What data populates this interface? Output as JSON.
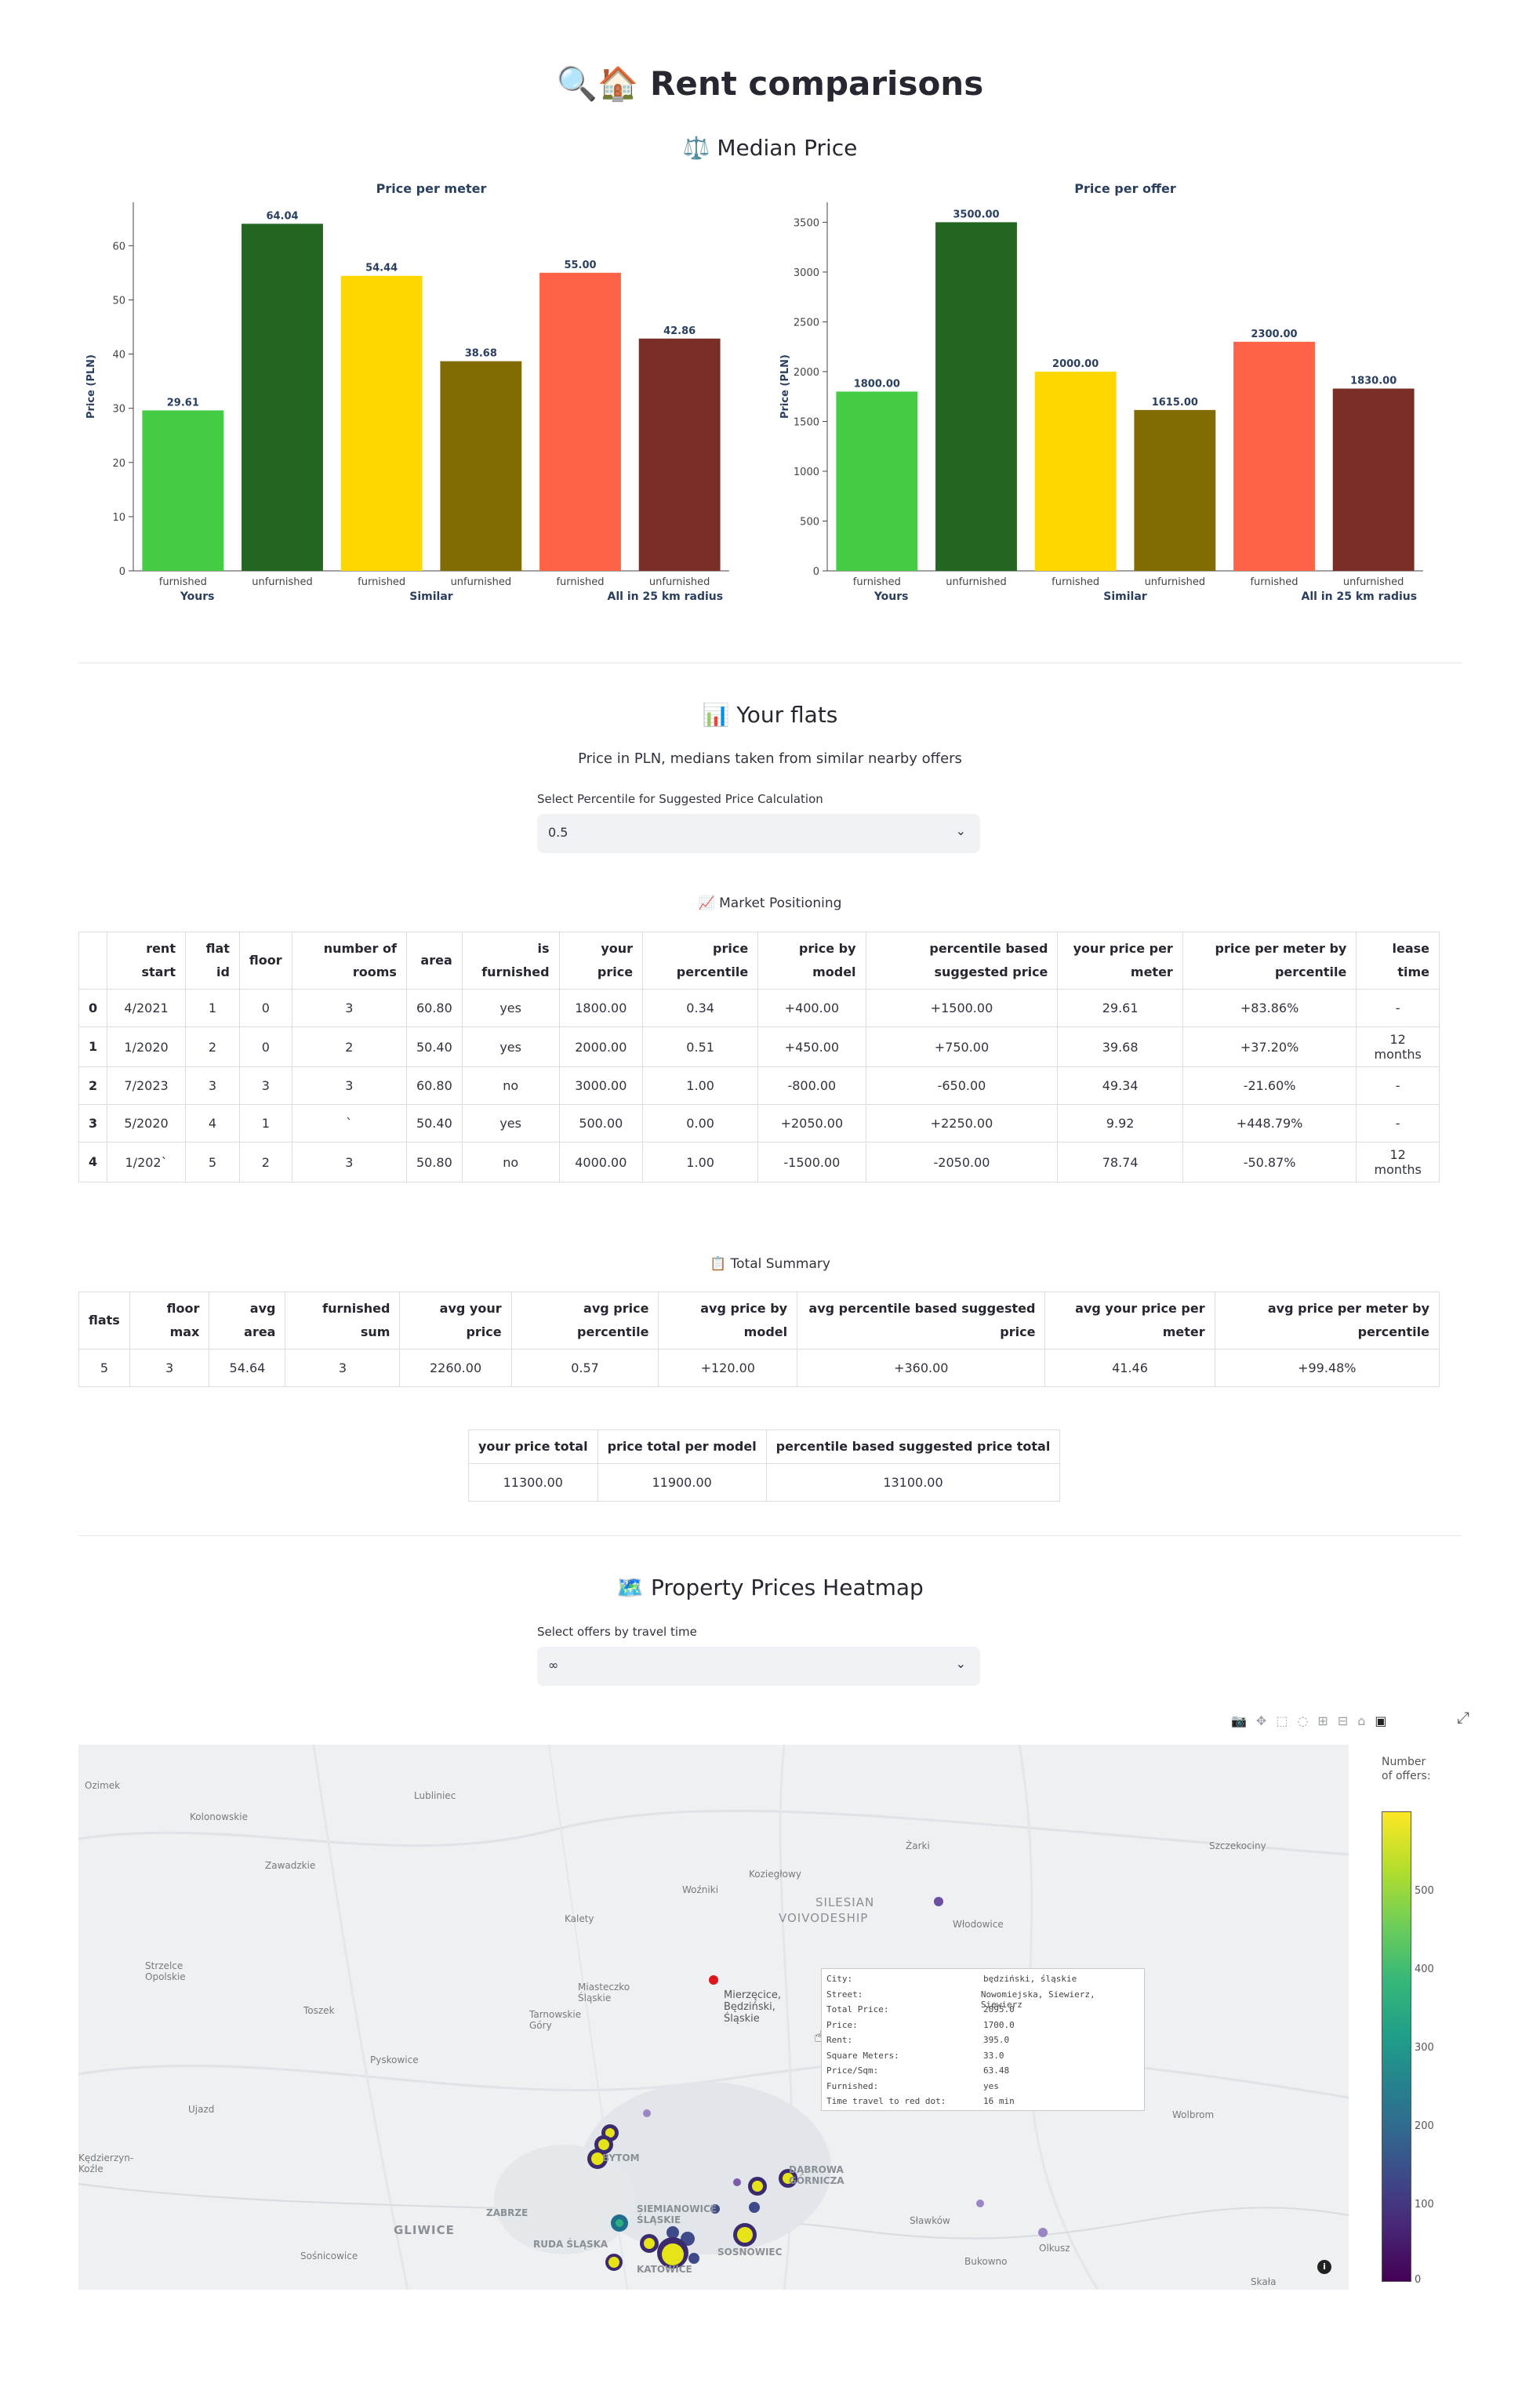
{
  "header": {
    "title_icons": "🔍🏠",
    "title": "Rent comparisons",
    "median_icon": "⚖️",
    "median_title": "Median Price"
  },
  "chart_data": [
    {
      "type": "bar",
      "title": "Price per meter",
      "ylabel": "Price (PLN)",
      "ylim": [
        0,
        68
      ],
      "yticks": [
        0,
        10,
        20,
        30,
        40,
        50,
        60
      ],
      "groups": [
        "Yours",
        "Similar",
        "All in 25 km radius"
      ],
      "categories": [
        "furnished",
        "unfurnished",
        "furnished",
        "unfurnished",
        "furnished",
        "unfurnished"
      ],
      "values": [
        29.61,
        64.04,
        54.44,
        38.68,
        55.0,
        42.86
      ],
      "labels": [
        "29.61",
        "64.04",
        "54.44",
        "38.68",
        "55.00",
        "42.86"
      ],
      "colors": [
        "#44cc44",
        "#226622",
        "#ffd700",
        "#806c00",
        "#ff6347",
        "#7b2e25"
      ]
    },
    {
      "type": "bar",
      "title": "Price per offer",
      "ylabel": "Price (PLN)",
      "ylim": [
        0,
        3700
      ],
      "yticks": [
        0,
        500,
        1000,
        1500,
        2000,
        2500,
        3000,
        3500
      ],
      "groups": [
        "Yours",
        "Similar",
        "All in 25 km radius"
      ],
      "categories": [
        "furnished",
        "unfurnished",
        "furnished",
        "unfurnished",
        "furnished",
        "unfurnished"
      ],
      "values": [
        1800,
        3500,
        2000,
        1615,
        2300,
        1830
      ],
      "labels": [
        "1800.00",
        "3500.00",
        "2000.00",
        "1615.00",
        "2300.00",
        "1830.00"
      ],
      "colors": [
        "#44cc44",
        "#226622",
        "#ffd700",
        "#806c00",
        "#ff6347",
        "#7b2e25"
      ]
    }
  ],
  "your_flats": {
    "icon": "📊",
    "title": "Your flats",
    "caption": "Price in PLN, medians taken from similar nearby offers",
    "select_label": "Select Percentile for Suggested Price Calculation",
    "select_value": "0.5",
    "market_icon": "📈",
    "market_title": "Market Positioning",
    "columns": [
      "",
      "rent start",
      "flat id",
      "floor",
      "number of rooms",
      "area",
      "is furnished",
      "your price",
      "price percentile",
      "price by model",
      "percentile based suggested price",
      "your price per meter",
      "price per meter by percentile",
      "lease time"
    ],
    "rows": [
      [
        "0",
        "4/2021",
        "1",
        "0",
        "3",
        "60.80",
        "yes",
        "1800.00",
        "0.34",
        "+400.00",
        "+1500.00",
        "29.61",
        "+83.86%",
        "-"
      ],
      [
        "1",
        "1/2020",
        "2",
        "0",
        "2",
        "50.40",
        "yes",
        "2000.00",
        "0.51",
        "+450.00",
        "+750.00",
        "39.68",
        "+37.20%",
        "12 months"
      ],
      [
        "2",
        "7/2023",
        "3",
        "3",
        "3",
        "60.80",
        "no",
        "3000.00",
        "1.00",
        "-800.00",
        "-650.00",
        "49.34",
        "-21.60%",
        "-"
      ],
      [
        "3",
        "5/2020",
        "4",
        "1",
        "`",
        "50.40",
        "yes",
        "500.00",
        "0.00",
        "+2050.00",
        "+2250.00",
        "9.92",
        "+448.79%",
        "-"
      ],
      [
        "4",
        "1/202`",
        "5",
        "2",
        "3",
        "50.80",
        "no",
        "4000.00",
        "1.00",
        "-1500.00",
        "-2050.00",
        "78.74",
        "-50.87%",
        "12 months"
      ]
    ],
    "summary_icon": "📋",
    "summary_title": "Total Summary",
    "summary_columns": [
      "flats",
      "floor max",
      "avg area",
      "furnished sum",
      "avg your price",
      "avg price percentile",
      "avg price by model",
      "avg percentile based suggested price",
      "avg your price per meter",
      "avg price per meter by percentile"
    ],
    "summary_row": [
      "5",
      "3",
      "54.64",
      "3",
      "2260.00",
      "0.57",
      "+120.00",
      "+360.00",
      "41.46",
      "+99.48%"
    ],
    "totals_columns": [
      "your price total",
      "price total per model",
      "percentile based suggested price total"
    ],
    "totals_row": [
      "11300.00",
      "11900.00",
      "13100.00"
    ]
  },
  "heatmap": {
    "icon": "🗺️",
    "title": "Property Prices Heatmap",
    "select_label": "Select offers by travel time",
    "select_value": "∞",
    "colorbar_title": "Number of offers:",
    "colorbar_ticks": [
      "500",
      "400",
      "300",
      "200",
      "100",
      "0"
    ],
    "tooltip": [
      [
        "City:",
        "będziński, śląskie"
      ],
      [
        "Street:",
        "Nowomiejska, Siewierz, Siewierz"
      ],
      [
        "Total Price:",
        "2095.0"
      ],
      [
        "Price:",
        "1700.0"
      ],
      [
        "Rent:",
        "395.0"
      ],
      [
        "Square Meters:",
        "33.0"
      ],
      [
        "Price/Sqm:",
        "63.48"
      ],
      [
        "Furnished:",
        "yes"
      ],
      [
        "Time travel to red dot:",
        "16 min"
      ]
    ],
    "map_labels": {
      "ozimek": "Ozimek",
      "lubliniec": "Lubliniec",
      "kolonowskie": "Kolonowskie",
      "zarki": "Żarki",
      "szczekociny": "Szczekociny",
      "zawadzkie": "Zawadzkie",
      "wozniki": "Woźniki",
      "koziegłowy": "Koziegłowy",
      "silesian": "SILESIAN",
      "voivodeship": "VOIVODESHIP",
      "kalety": "Kalety",
      "wlodowice": "Włodowice",
      "strzelce": "Strzelce Opolskie",
      "miasteczko": "Miasteczko Śląskie",
      "toszek": "Toszek",
      "tarnowskie": "Tarnowskie Góry",
      "mierzecice": "Mierzęcice, Będziński, Śląskie",
      "pyskowice": "Pyskowice",
      "ujazd": "Ujazd",
      "wolbrom": "Wolbrom",
      "kedzierzyn": "Kędzierzyn-Koźle",
      "bytom": "BYTOM",
      "zabrze": "ZABRZE",
      "gliwice": "GLIWICE",
      "siemianowice": "SIEMIANOWICE ŚLĄSKIE",
      "ruda": "RUDA ŚLĄSKA",
      "sosnowiec": "SOSNOWIEC",
      "katowice": "KATOWICE",
      "dabrowa": "DĄBROWA GÓRNICZA",
      "slawkow": "Sławków",
      "olkusz": "Olkusz",
      "bukowno": "Bukowno",
      "sosnicowice": "Sośnicowice",
      "skala": "Skała"
    }
  }
}
